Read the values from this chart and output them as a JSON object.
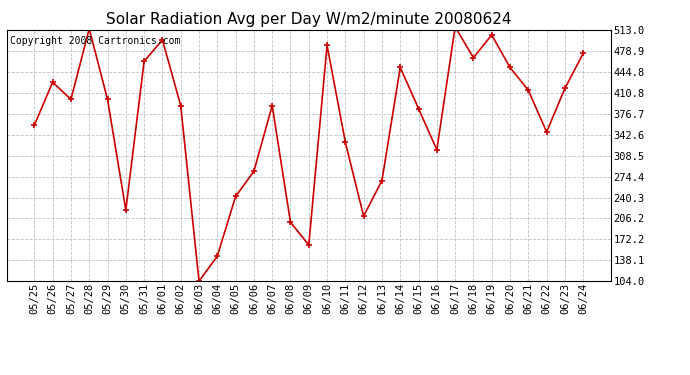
{
  "title": "Solar Radiation Avg per Day W/m2/minute 20080624",
  "copyright_text": "Copyright 2008 Cartronics.com",
  "labels": [
    "05/25",
    "05/26",
    "05/27",
    "05/28",
    "05/29",
    "05/30",
    "05/31",
    "06/01",
    "06/02",
    "06/03",
    "06/04",
    "06/05",
    "06/06",
    "06/07",
    "06/08",
    "06/09",
    "06/10",
    "06/11",
    "06/12",
    "06/13",
    "06/14",
    "06/15",
    "06/16",
    "06/17",
    "06/18",
    "06/19",
    "06/20",
    "06/21",
    "06/22",
    "06/23",
    "06/24"
  ],
  "values": [
    358,
    428,
    400,
    515,
    400,
    220,
    462,
    497,
    390,
    104,
    145,
    242,
    283,
    390,
    200,
    163,
    488,
    330,
    210,
    268,
    452,
    385,
    318,
    518,
    468,
    505,
    452,
    415,
    347,
    418,
    475
  ],
  "line_color": "#cc0000",
  "marker_color": "#cc0000",
  "bg_color": "#ffffff",
  "grid_color": "#bbbbbb",
  "yticks": [
    104.0,
    138.1,
    172.2,
    206.2,
    240.3,
    274.4,
    308.5,
    342.6,
    376.7,
    410.8,
    444.8,
    478.9,
    513.0
  ],
  "ylim": [
    104.0,
    513.0
  ],
  "title_fontsize": 11,
  "copyright_fontsize": 7,
  "tick_fontsize": 7.5
}
